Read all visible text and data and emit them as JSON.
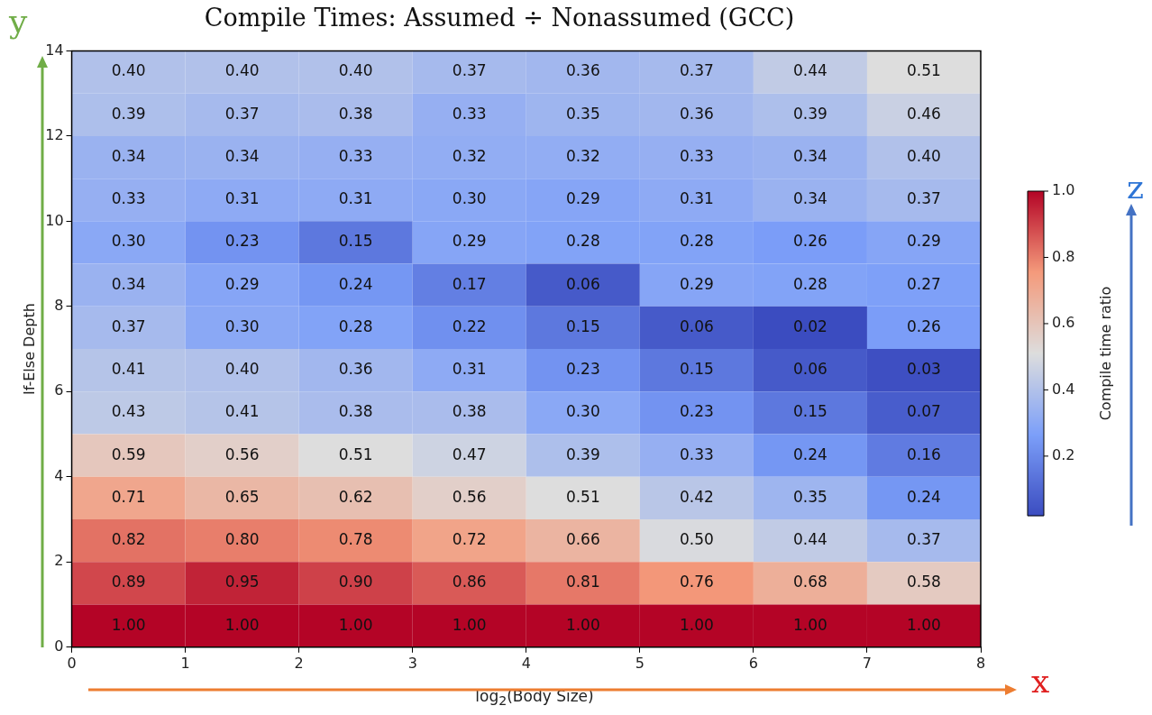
{
  "chart_data": {
    "type": "heatmap",
    "title": "Compile Times: Assumed ÷ Nonassumed (GCC)",
    "xlabel": "log$_{2}$(Body Size)",
    "ylabel": "If-Else Depth",
    "clabel": "Compile time ratio",
    "xlim": [
      0,
      8
    ],
    "xticks": [
      0,
      1,
      2,
      3,
      4,
      5,
      6,
      7,
      8
    ],
    "ylim": [
      0,
      14
    ],
    "yticks": [
      0,
      2,
      4,
      6,
      8,
      10,
      12,
      14
    ],
    "clim": [
      0.02,
      1.0
    ],
    "cticks": [
      {
        "value": 0.2,
        "label": "0.2"
      },
      {
        "value": 0.4,
        "label": "0.4"
      },
      {
        "value": 0.6,
        "label": "0.6"
      },
      {
        "value": 0.8,
        "label": "0.8"
      },
      {
        "value": 1.0,
        "label": "1.0"
      }
    ],
    "cells": [
      [
        0.4,
        0.4,
        0.4,
        0.37,
        0.36,
        0.37,
        0.44,
        0.51
      ],
      [
        0.39,
        0.37,
        0.38,
        0.33,
        0.35,
        0.36,
        0.39,
        0.46
      ],
      [
        0.34,
        0.34,
        0.33,
        0.32,
        0.32,
        0.33,
        0.34,
        0.4
      ],
      [
        0.33,
        0.31,
        0.31,
        0.3,
        0.29,
        0.31,
        0.34,
        0.37
      ],
      [
        0.3,
        0.23,
        0.15,
        0.29,
        0.28,
        0.28,
        0.26,
        0.29
      ],
      [
        0.34,
        0.29,
        0.24,
        0.17,
        0.06,
        0.29,
        0.28,
        0.27
      ],
      [
        0.37,
        0.3,
        0.28,
        0.22,
        0.15,
        0.06,
        0.02,
        0.26
      ],
      [
        0.41,
        0.4,
        0.36,
        0.31,
        0.23,
        0.15,
        0.06,
        0.03
      ],
      [
        0.43,
        0.41,
        0.38,
        0.38,
        0.3,
        0.23,
        0.15,
        0.07
      ],
      [
        0.59,
        0.56,
        0.51,
        0.47,
        0.39,
        0.33,
        0.24,
        0.16
      ],
      [
        0.71,
        0.65,
        0.62,
        0.56,
        0.51,
        0.42,
        0.35,
        0.24
      ],
      [
        0.82,
        0.8,
        0.78,
        0.72,
        0.66,
        0.5,
        0.44,
        0.37
      ],
      [
        0.89,
        0.95,
        0.9,
        0.86,
        0.81,
        0.76,
        0.68,
        0.58
      ],
      [
        1.0,
        1.0,
        1.0,
        1.0,
        1.0,
        1.0,
        1.0,
        1.0
      ]
    ],
    "cell_labels": [
      [
        "0.40",
        "0.40",
        "0.40",
        "0.37",
        "0.36",
        "0.37",
        "0.44",
        "0.51"
      ],
      [
        "0.39",
        "0.37",
        "0.38",
        "0.33",
        "0.35",
        "0.36",
        "0.39",
        "0.46"
      ],
      [
        "0.34",
        "0.34",
        "0.33",
        "0.32",
        "0.32",
        "0.33",
        "0.34",
        "0.40"
      ],
      [
        "0.33",
        "0.31",
        "0.31",
        "0.30",
        "0.29",
        "0.31",
        "0.34",
        "0.37"
      ],
      [
        "0.30",
        "0.23",
        "0.15",
        "0.29",
        "0.28",
        "0.28",
        "0.26",
        "0.29"
      ],
      [
        "0.34",
        "0.29",
        "0.24",
        "0.17",
        "0.06",
        "0.29",
        "0.28",
        "0.27"
      ],
      [
        "0.37",
        "0.30",
        "0.28",
        "0.22",
        "0.15",
        "0.06",
        "0.02",
        "0.26"
      ],
      [
        "0.41",
        "0.40",
        "0.36",
        "0.31",
        "0.23",
        "0.15",
        "0.06",
        "0.03"
      ],
      [
        "0.43",
        "0.41",
        "0.38",
        "0.38",
        "0.30",
        "0.23",
        "0.15",
        "0.07"
      ],
      [
        "0.59",
        "0.56",
        "0.51",
        "0.47",
        "0.39",
        "0.33",
        "0.24",
        "0.16"
      ],
      [
        "0.71",
        "0.65",
        "0.62",
        "0.56",
        "0.51",
        "0.42",
        "0.35",
        "0.24"
      ],
      [
        "0.82",
        "0.80",
        "0.78",
        "0.72",
        "0.66",
        "0.50",
        "0.44",
        "0.37"
      ],
      [
        "0.89",
        "0.95",
        "0.90",
        "0.86",
        "0.81",
        "0.76",
        "0.68",
        "0.58"
      ],
      [
        "1.00",
        "1.00",
        "1.00",
        "1.00",
        "1.00",
        "1.00",
        "1.00",
        "1.00"
      ]
    ],
    "annotations": [
      "y",
      "x",
      "z"
    ]
  }
}
